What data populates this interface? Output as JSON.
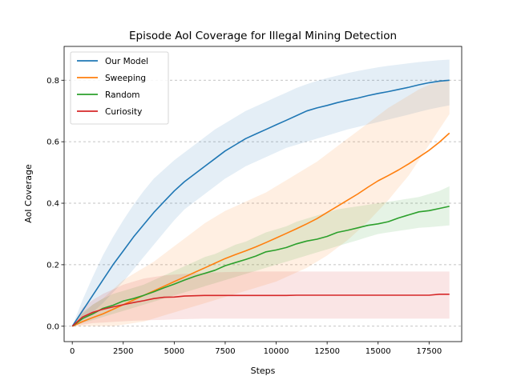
{
  "chart_data": {
    "type": "line",
    "title": "Episode AoI Coverage for Illegal Mining Detection",
    "xlabel": "Steps",
    "ylabel": "AoI Coverage",
    "xlim": [
      -400,
      19100
    ],
    "ylim": [
      -0.05,
      0.91
    ],
    "xticks": [
      0,
      2500,
      5000,
      7500,
      10000,
      12500,
      15000,
      17500
    ],
    "yticks": [
      0.0,
      0.2,
      0.4,
      0.6,
      0.8
    ],
    "xtick_labels": [
      "0",
      "2500",
      "5000",
      "7500",
      "10000",
      "12500",
      "15000",
      "17500"
    ],
    "ytick_labels": [
      "0.0",
      "0.2",
      "0.4",
      "0.6",
      "0.8"
    ],
    "grid": "horizontal dashed",
    "legend_position": "top-left",
    "x": [
      0,
      500,
      1000,
      1500,
      2000,
      2500,
      3000,
      3500,
      4000,
      4500,
      5000,
      5500,
      6000,
      6500,
      7000,
      7500,
      8000,
      8500,
      9000,
      9500,
      10000,
      10500,
      11000,
      11500,
      12000,
      12500,
      13000,
      13500,
      14000,
      14500,
      15000,
      15500,
      16000,
      16500,
      17000,
      17500,
      18000,
      18500
    ],
    "series": [
      {
        "name": "Our Model",
        "color": "#1f77b4",
        "values": [
          0.0,
          0.05,
          0.1,
          0.15,
          0.2,
          0.245,
          0.29,
          0.33,
          0.37,
          0.405,
          0.44,
          0.47,
          0.495,
          0.52,
          0.545,
          0.57,
          0.59,
          0.61,
          0.625,
          0.64,
          0.655,
          0.67,
          0.685,
          0.7,
          0.71,
          0.718,
          0.727,
          0.735,
          0.742,
          0.75,
          0.757,
          0.763,
          0.77,
          0.777,
          0.785,
          0.792,
          0.797,
          0.8
        ],
        "upper": [
          0.0,
          0.085,
          0.16,
          0.23,
          0.29,
          0.345,
          0.395,
          0.44,
          0.48,
          0.51,
          0.54,
          0.565,
          0.59,
          0.615,
          0.64,
          0.66,
          0.68,
          0.7,
          0.715,
          0.73,
          0.745,
          0.76,
          0.775,
          0.787,
          0.798,
          0.807,
          0.815,
          0.823,
          0.83,
          0.836,
          0.842,
          0.847,
          0.851,
          0.855,
          0.859,
          0.862,
          0.865,
          0.867
        ],
        "lower": [
          0.0,
          0.02,
          0.045,
          0.075,
          0.11,
          0.145,
          0.185,
          0.225,
          0.265,
          0.305,
          0.345,
          0.38,
          0.405,
          0.43,
          0.455,
          0.48,
          0.5,
          0.52,
          0.535,
          0.55,
          0.565,
          0.58,
          0.59,
          0.6,
          0.61,
          0.62,
          0.63,
          0.64,
          0.648,
          0.656,
          0.664,
          0.672,
          0.68,
          0.688,
          0.697,
          0.705,
          0.712,
          0.718
        ]
      },
      {
        "name": "Sweeping",
        "color": "#ff7f0e",
        "values": [
          0.0,
          0.015,
          0.028,
          0.04,
          0.055,
          0.07,
          0.085,
          0.1,
          0.115,
          0.13,
          0.145,
          0.16,
          0.175,
          0.19,
          0.205,
          0.22,
          0.233,
          0.245,
          0.258,
          0.272,
          0.287,
          0.302,
          0.317,
          0.333,
          0.35,
          0.37,
          0.39,
          0.41,
          0.43,
          0.452,
          0.473,
          0.49,
          0.508,
          0.528,
          0.55,
          0.572,
          0.598,
          0.628
        ],
        "upper": [
          0.0,
          0.04,
          0.07,
          0.09,
          0.12,
          0.15,
          0.17,
          0.19,
          0.21,
          0.235,
          0.26,
          0.285,
          0.31,
          0.335,
          0.355,
          0.375,
          0.39,
          0.405,
          0.42,
          0.435,
          0.455,
          0.475,
          0.495,
          0.515,
          0.535,
          0.56,
          0.585,
          0.61,
          0.635,
          0.66,
          0.685,
          0.71,
          0.73,
          0.75,
          0.77,
          0.785,
          0.795,
          0.8
        ],
        "lower": [
          0.0,
          0.0,
          0.0,
          0.0,
          0.0,
          0.005,
          0.01,
          0.015,
          0.025,
          0.035,
          0.045,
          0.055,
          0.065,
          0.075,
          0.085,
          0.095,
          0.105,
          0.115,
          0.125,
          0.135,
          0.145,
          0.16,
          0.175,
          0.19,
          0.21,
          0.23,
          0.255,
          0.28,
          0.31,
          0.34,
          0.375,
          0.41,
          0.45,
          0.49,
          0.54,
          0.59,
          0.64,
          0.69
        ]
      },
      {
        "name": "Random",
        "color": "#2ca02c",
        "values": [
          0.0,
          0.025,
          0.04,
          0.058,
          0.068,
          0.082,
          0.09,
          0.1,
          0.112,
          0.125,
          0.137,
          0.15,
          0.162,
          0.172,
          0.182,
          0.197,
          0.207,
          0.217,
          0.228,
          0.242,
          0.248,
          0.256,
          0.268,
          0.277,
          0.283,
          0.292,
          0.305,
          0.312,
          0.32,
          0.328,
          0.333,
          0.34,
          0.352,
          0.362,
          0.372,
          0.376,
          0.383,
          0.39
        ],
        "upper": [
          0.0,
          0.045,
          0.07,
          0.09,
          0.105,
          0.115,
          0.125,
          0.135,
          0.15,
          0.165,
          0.18,
          0.195,
          0.21,
          0.225,
          0.235,
          0.25,
          0.265,
          0.275,
          0.29,
          0.305,
          0.315,
          0.325,
          0.34,
          0.35,
          0.36,
          0.37,
          0.38,
          0.385,
          0.39,
          0.395,
          0.4,
          0.405,
          0.41,
          0.415,
          0.42,
          0.43,
          0.44,
          0.455
        ],
        "lower": [
          0.0,
          0.01,
          0.02,
          0.03,
          0.04,
          0.05,
          0.06,
          0.07,
          0.08,
          0.09,
          0.1,
          0.11,
          0.12,
          0.13,
          0.14,
          0.15,
          0.16,
          0.17,
          0.18,
          0.19,
          0.2,
          0.21,
          0.22,
          0.23,
          0.24,
          0.25,
          0.26,
          0.27,
          0.28,
          0.29,
          0.3,
          0.305,
          0.31,
          0.315,
          0.32,
          0.322,
          0.325,
          0.328
        ]
      },
      {
        "name": "Curiosity",
        "color": "#d62728",
        "values": [
          0.0,
          0.03,
          0.045,
          0.055,
          0.063,
          0.07,
          0.077,
          0.083,
          0.09,
          0.094,
          0.095,
          0.098,
          0.099,
          0.1,
          0.1,
          0.1,
          0.1,
          0.1,
          0.1,
          0.1,
          0.1,
          0.1,
          0.101,
          0.101,
          0.101,
          0.101,
          0.101,
          0.101,
          0.101,
          0.101,
          0.101,
          0.101,
          0.101,
          0.101,
          0.101,
          0.101,
          0.104,
          0.104
        ],
        "upper": [
          0.0,
          0.06,
          0.085,
          0.105,
          0.12,
          0.135,
          0.145,
          0.155,
          0.16,
          0.165,
          0.168,
          0.17,
          0.172,
          0.174,
          0.175,
          0.176,
          0.177,
          0.177,
          0.178,
          0.178,
          0.178,
          0.178,
          0.178,
          0.178,
          0.178,
          0.178,
          0.178,
          0.178,
          0.178,
          0.178,
          0.178,
          0.178,
          0.178,
          0.178,
          0.178,
          0.178,
          0.178,
          0.178
        ],
        "lower": [
          0.0,
          0.005,
          0.01,
          0.012,
          0.014,
          0.016,
          0.018,
          0.019,
          0.02,
          0.021,
          0.022,
          0.023,
          0.024,
          0.025,
          0.025,
          0.025,
          0.025,
          0.025,
          0.025,
          0.025,
          0.025,
          0.025,
          0.025,
          0.025,
          0.025,
          0.025,
          0.025,
          0.025,
          0.025,
          0.025,
          0.025,
          0.025,
          0.025,
          0.025,
          0.025,
          0.025,
          0.025,
          0.025
        ]
      }
    ]
  }
}
